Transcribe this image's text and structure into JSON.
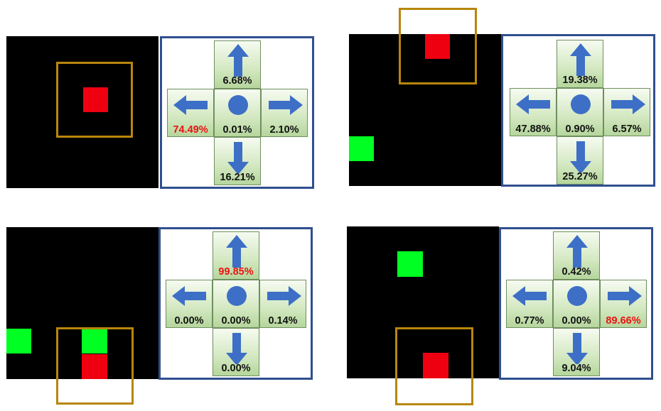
{
  "colors": {
    "background": "#000000",
    "agent": "#ee0011",
    "goal": "#00ff22",
    "view_frame": "#b8860b",
    "panel_border": "#2f4f8f",
    "arrow": "#3d6fc6",
    "highlight_text": "#ee1111"
  },
  "icons": {
    "up": "arrow-up-icon",
    "left": "arrow-left-icon",
    "stay": "circle-stay-icon",
    "right": "arrow-right-icon",
    "down": "arrow-down-icon"
  },
  "panels": [
    {
      "up": "6.68%",
      "left": "74.49%",
      "stay": "0.01%",
      "right": "2.10%",
      "down": "16.21%",
      "highlight": "left"
    },
    {
      "up": "19.38%",
      "left": "47.88%",
      "stay": "0.90%",
      "right": "6.57%",
      "down": "25.27%",
      "highlight": "none"
    },
    {
      "up": "99.85%",
      "left": "0.00%",
      "stay": "0.00%",
      "right": "0.14%",
      "down": "0.00%",
      "highlight": "up"
    },
    {
      "up": "0.42%",
      "left": "0.77%",
      "stay": "0.00%",
      "right": "89.66%",
      "down": "9.04%",
      "highlight": "right"
    }
  ]
}
